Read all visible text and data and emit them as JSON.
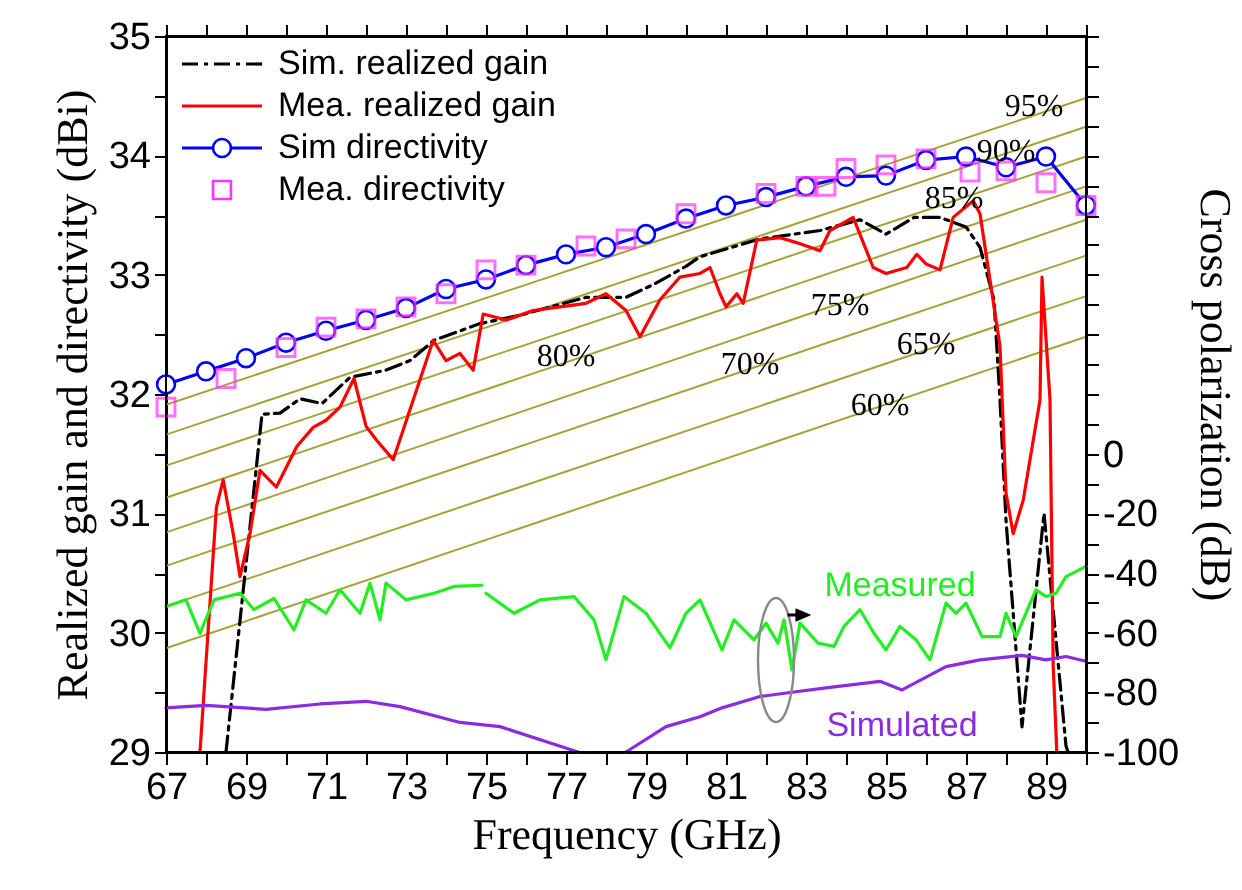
{
  "chart_data": {
    "type": "line",
    "xlabel": "Frequency (GHz)",
    "ylabel": "Realized gain and directivity (dBi)",
    "y2label": "Cross polarization (dB)",
    "xlim": [
      67,
      90
    ],
    "xticks": [
      67,
      {
        "value": 68,
        "label": null
      },
      69,
      {
        "value": 70,
        "label": null
      },
      71,
      {
        "value": 72,
        "label": null
      },
      73,
      {
        "value": 74,
        "label": null
      },
      75,
      {
        "value": 76,
        "label": null
      },
      77,
      {
        "value": 78,
        "label": null
      },
      79,
      {
        "value": 80,
        "label": null
      },
      81,
      {
        "value": 82,
        "label": null
      },
      83,
      {
        "value": 84,
        "label": null
      },
      85,
      {
        "value": 86,
        "label": null
      },
      87,
      {
        "value": 88,
        "label": null
      },
      89,
      {
        "value": 90,
        "label": null
      }
    ],
    "ylim": [
      29,
      35
    ],
    "yticks": [
      29,
      {
        "value": 29.5,
        "label": null
      },
      30,
      {
        "value": 30.5,
        "label": null
      },
      31,
      {
        "value": 31.5,
        "label": null
      },
      32,
      {
        "value": 32.5,
        "label": null
      },
      33,
      {
        "value": 33.5,
        "label": null
      },
      34,
      {
        "value": 34.5,
        "label": null
      },
      35
    ],
    "y2lim": [
      -100,
      140
    ],
    "y2ticks": [
      -100,
      {
        "value": -90,
        "label": null
      },
      -80,
      {
        "value": -70,
        "label": null
      },
      -60,
      {
        "value": -50,
        "label": null
      },
      -40,
      {
        "value": -30,
        "label": null
      },
      -20,
      {
        "value": -10,
        "label": null
      },
      0,
      {
        "value": 10,
        "label": null
      },
      {
        "value": 20,
        "label": null
      },
      {
        "value": 30,
        "label": null
      },
      {
        "value": 40,
        "label": null
      },
      {
        "value": 50,
        "label": null
      },
      {
        "value": 60,
        "label": null
      },
      {
        "value": 70,
        "label": null
      },
      {
        "value": 80,
        "label": null
      },
      {
        "value": 90,
        "label": null
      },
      {
        "value": 100,
        "label": null
      },
      {
        "value": 110,
        "label": null
      },
      {
        "value": 120,
        "label": null
      },
      {
        "value": 130,
        "label": null
      },
      {
        "value": 140,
        "label": null
      }
    ],
    "grid": false,
    "legend": "top left",
    "series": [
      {
        "color": "#a8a23a",
        "x": [
          67,
          90
        ],
        "values": [
          31.91,
          34.48
        ]
      },
      {
        "color": "#a8a23a",
        "x": [
          67,
          90
        ],
        "values": [
          31.66,
          34.24
        ]
      },
      {
        "color": "#a8a23a",
        "x": [
          67,
          90
        ],
        "values": [
          31.4,
          33.99
        ]
      },
      {
        "color": "#a8a23a",
        "x": [
          67,
          90
        ],
        "values": [
          31.13,
          33.74
        ]
      },
      {
        "color": "#a8a23a",
        "x": [
          67,
          90
        ],
        "values": [
          30.84,
          33.46
        ]
      },
      {
        "color": "#a8a23a",
        "x": [
          67,
          90
        ],
        "values": [
          30.56,
          33.16
        ]
      },
      {
        "color": "#a8a23a",
        "x": [
          67,
          90
        ],
        "values": [
          30.22,
          32.82
        ]
      },
      {
        "color": "#a8a23a",
        "x": [
          67,
          90
        ],
        "values": [
          29.87,
          32.48
        ]
      },
      {
        "name": "Sim. realized gain",
        "color": "#000000",
        "line_style": "dashed",
        "x": [
          68.5,
          69.4,
          69.85,
          70.35,
          70.9,
          71.6,
          72.5,
          73.1,
          73.7,
          74.85,
          75.85,
          77.5,
          78.5,
          79.2,
          80.0,
          80.35,
          81.85,
          83.35,
          84.35,
          85.0,
          85.7,
          86.35,
          87.0,
          87.35,
          87.7,
          87.85,
          88.0,
          88.4,
          88.95,
          89.5,
          89.55
        ],
        "values": [
          29.0,
          31.83,
          31.84,
          31.96,
          31.92,
          32.14,
          32.2,
          32.28,
          32.45,
          32.59,
          32.66,
          32.81,
          32.81,
          32.92,
          33.07,
          33.15,
          33.3,
          33.37,
          33.46,
          33.34,
          33.48,
          33.48,
          33.4,
          33.23,
          32.79,
          31.95,
          30.94,
          29.21,
          31.0,
          29.05,
          29.0
        ]
      },
      {
        "name": "Mea. realized gain",
        "color": "#ff0000",
        "x": [
          67.85,
          68.26,
          68.43,
          68.68,
          68.85,
          69.1,
          69.35,
          69.76,
          70.27,
          70.68,
          71.0,
          71.35,
          71.7,
          72.0,
          72.27,
          72.68,
          73.18,
          73.68,
          74.0,
          74.35,
          74.68,
          74.93,
          75.5,
          76.18,
          76.85,
          77.5,
          78.0,
          78.5,
          78.85,
          79.35,
          79.85,
          80.35,
          80.6,
          80.85,
          81.0,
          81.27,
          81.43,
          81.77,
          82.35,
          82.85,
          83.35,
          83.6,
          84.18,
          84.68,
          85.0,
          85.52,
          85.77,
          86.0,
          86.35,
          86.68,
          87.18,
          87.35,
          87.85,
          88.0,
          88.18,
          88.43,
          88.85,
          88.9,
          89.1,
          89.18,
          89.27
        ],
        "values": [
          29.0,
          31.05,
          31.28,
          30.83,
          30.47,
          30.83,
          31.36,
          31.22,
          31.56,
          31.72,
          31.78,
          31.89,
          32.13,
          31.73,
          31.61,
          31.45,
          31.95,
          32.45,
          32.28,
          32.34,
          32.2,
          32.67,
          32.62,
          32.7,
          32.73,
          32.76,
          32.84,
          32.7,
          32.48,
          32.79,
          32.98,
          33.01,
          33.06,
          32.84,
          32.73,
          32.84,
          32.76,
          33.29,
          33.31,
          33.26,
          33.2,
          33.37,
          33.48,
          33.06,
          33.01,
          33.06,
          33.17,
          33.09,
          33.04,
          33.48,
          33.62,
          33.51,
          32.4,
          31.17,
          30.83,
          31.11,
          31.95,
          32.98,
          31.95,
          29.72,
          29.0
        ]
      },
      {
        "name": "Sim directivity",
        "color": "#0000ff",
        "marker": "circle",
        "x": [
          67,
          68,
          69,
          70,
          71,
          72,
          73,
          74,
          75,
          76,
          77,
          78,
          79,
          80,
          81,
          82,
          83,
          84,
          85,
          86,
          87,
          88,
          89,
          90
        ],
        "values": [
          32.08,
          32.19,
          32.3,
          32.43,
          32.53,
          32.62,
          32.72,
          32.88,
          32.96,
          33.08,
          33.17,
          33.23,
          33.34,
          33.47,
          33.58,
          33.65,
          33.74,
          33.82,
          33.83,
          33.96,
          33.99,
          33.9,
          33.99,
          33.58
        ]
      },
      {
        "name": "Mea. directivity",
        "type": "scatter",
        "color": "#ff33ff",
        "marker": "square",
        "x": [
          67,
          68.5,
          70,
          71,
          72,
          73,
          74,
          75,
          76,
          77.5,
          78.5,
          80,
          82,
          83,
          83.5,
          84,
          85,
          86,
          87.1,
          88,
          89,
          90
        ],
        "values": [
          31.89,
          32.13,
          32.39,
          32.56,
          32.63,
          32.73,
          32.84,
          33.04,
          33.08,
          33.24,
          33.3,
          33.51,
          33.68,
          33.74,
          33.74,
          33.89,
          33.92,
          33.97,
          33.86,
          33.87,
          33.77,
          33.58
        ]
      },
      {
        "name": "Measured",
        "color": "#22ee22",
        "axis": "y2",
        "x": [
          67,
          67.5,
          67.85,
          68.2,
          68.85,
          69.2,
          69.7,
          70.2,
          70.5,
          71.0,
          71.35,
          71.85,
          72.1,
          72.35,
          72.5,
          73.0,
          73.7,
          74.2,
          74.9,
          74.95,
          75.0,
          75.7,
          76.35,
          77.2,
          77.7,
          78.0,
          78.45,
          79.0,
          79.6,
          80.0,
          80.35,
          80.9,
          81.2,
          81.7,
          82.0,
          82.3,
          82.45,
          82.65,
          82.85,
          83.3,
          83.7,
          83.95,
          84.35,
          84.7,
          85.0,
          85.35,
          85.75,
          86.1,
          86.5,
          86.75,
          87.0,
          87.4,
          87.85,
          88.0,
          88.25,
          88.75,
          89.0,
          89.25,
          89.5,
          90.0
        ],
        "values": [
          -51.2,
          -49,
          -60.2,
          -49,
          -46.8,
          -52.3,
          -48.5,
          -59.1,
          -49,
          -53.5,
          -45.6,
          -53.5,
          -43.4,
          -55.7,
          -43.4,
          -49,
          -46.8,
          -44.5,
          -44.1,
          null,
          -46.8,
          -53.5,
          -49,
          -47.9,
          -55.7,
          -69.1,
          -47.9,
          -53.5,
          -65.1,
          -53.5,
          -49,
          -65.8,
          -55.7,
          -62.4,
          -56.8,
          -63.5,
          -55.7,
          -72.5,
          -56.8,
          -63.5,
          -64.6,
          -57.9,
          -52.3,
          -60.2,
          -65.8,
          -57.9,
          -62.4,
          -69.1,
          -50.1,
          -53.5,
          -50.1,
          -61.3,
          -61.3,
          -53.5,
          -61.3,
          -45.6,
          -47.9,
          -46.8,
          -41.2,
          -37.8
        ]
      },
      {
        "name": "Simulated",
        "color": "#8a2be2",
        "axis": "y2",
        "x": [
          67,
          68,
          69.5,
          70.85,
          72.0,
          72.85,
          74.35,
          75.35,
          77.3,
          77.9,
          78.5,
          79.5,
          80.35,
          80.9,
          81.85,
          82.7,
          83.5,
          84.85,
          85.4,
          86.5,
          87.35,
          88.4,
          89.0,
          89.5,
          90.0
        ],
        "values": [
          -85.2,
          -84.4,
          -85.7,
          -83.9,
          -83,
          -84.8,
          -90.1,
          -91.5,
          -100,
          null,
          -100,
          -91.5,
          -88.2,
          -85.2,
          -81.4,
          -79.9,
          -78.5,
          -76.3,
          -79.2,
          -71.4,
          -69.1,
          -67.6,
          -69.1,
          -68,
          -69.6
        ]
      }
    ],
    "annotations": [
      {
        "text": "95%",
        "x": 88.7,
        "y": 34.41
      },
      {
        "text": "90%",
        "x": 88.0,
        "y": 34.04
      },
      {
        "text": "85%",
        "x": 86.7,
        "y": 33.64
      },
      {
        "text": "80%",
        "x": 77.0,
        "y": 32.32
      },
      {
        "text": "75%",
        "x": 83.85,
        "y": 32.75
      },
      {
        "text": "70%",
        "x": 81.6,
        "y": 32.25
      },
      {
        "text": "65%",
        "x": 86.0,
        "y": 32.42
      },
      {
        "text": "60%",
        "x": 84.85,
        "y": 31.91
      }
    ]
  }
}
